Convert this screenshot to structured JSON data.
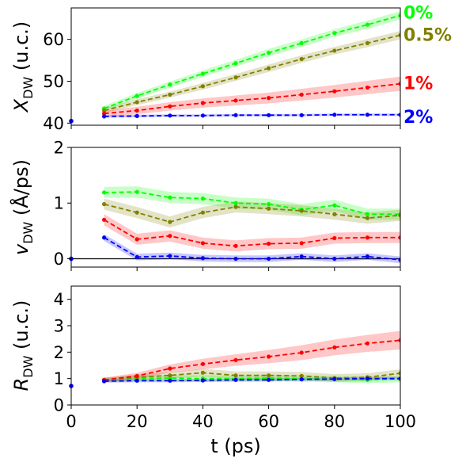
{
  "colors": {
    "0%": "#00ff00",
    "0.5%": "#808000",
    "1%": "#ff0000",
    "2%": "#0000ff"
  },
  "chart_data": [
    {
      "type": "line",
      "ylabel_main": "X",
      "ylabel_sub": "DW",
      "ylabel_unit": " (u.c.)",
      "xlim": [
        0,
        100
      ],
      "ylim": [
        39.5,
        67.5
      ],
      "yticks": [
        40,
        50,
        60
      ],
      "xticks": [
        0,
        20,
        40,
        60,
        80,
        100
      ],
      "show_xticklabels": false,
      "series": [
        {
          "name": "0%",
          "color": "#00ff00",
          "x": [
            10,
            20,
            30,
            40,
            50,
            60,
            70,
            80,
            90,
            100
          ],
          "y": [
            43.5,
            46.5,
            49.2,
            51.8,
            54.3,
            56.8,
            59.1,
            61.5,
            63.5,
            65.7
          ],
          "band": [
            0.6,
            0.7,
            0.7,
            0.8,
            0.8,
            0.9,
            0.9,
            0.9,
            1.0,
            1.0
          ]
        },
        {
          "name": "0.5%",
          "color": "#808000",
          "x": [
            10,
            20,
            30,
            40,
            50,
            60,
            70,
            80,
            90,
            100
          ],
          "y": [
            43.0,
            45.0,
            46.8,
            48.8,
            50.9,
            53.1,
            55.3,
            57.3,
            59.1,
            61.0
          ],
          "band": [
            0.6,
            0.7,
            0.7,
            0.8,
            0.8,
            0.9,
            0.9,
            0.9,
            1.0,
            1.0
          ]
        },
        {
          "name": "1%",
          "color": "#ff0000",
          "x": [
            10,
            20,
            30,
            40,
            50,
            60,
            70,
            80,
            90,
            100
          ],
          "y": [
            42.3,
            43.0,
            44.0,
            44.8,
            45.4,
            46.0,
            46.8,
            47.6,
            48.5,
            49.4
          ],
          "band": [
            0.7,
            0.9,
            1.0,
            1.1,
            1.2,
            1.3,
            1.4,
            1.5,
            1.6,
            1.7
          ]
        },
        {
          "name": "2%",
          "color": "#0000ff",
          "x": [
            10,
            20,
            30,
            40,
            50,
            60,
            70,
            80,
            90,
            100
          ],
          "y": [
            41.6,
            41.7,
            41.8,
            41.8,
            41.9,
            41.9,
            41.9,
            42.0,
            42.0,
            42.0
          ],
          "band": [
            0.3,
            0.3,
            0.3,
            0.3,
            0.3,
            0.3,
            0.3,
            0.3,
            0.3,
            0.3
          ]
        }
      ],
      "initial_point": {
        "x": 0,
        "y": 40.5,
        "color": "#0000ff"
      },
      "annotations": [
        {
          "text": "0%",
          "color": "#00ff00",
          "y": 66.5
        },
        {
          "text": "0.5%",
          "color": "#808000",
          "y": 61.2
        },
        {
          "text": "1%",
          "color": "#ff0000",
          "y": 49.6
        },
        {
          "text": "2%",
          "color": "#0000ff",
          "y": 41.6
        }
      ]
    },
    {
      "type": "line",
      "ylabel_main": "v",
      "ylabel_sub": "DW",
      "ylabel_unit": " (Å/ps)",
      "xlim": [
        0,
        100
      ],
      "ylim": [
        -0.15,
        2.0
      ],
      "yticks": [
        0,
        1,
        2
      ],
      "xticks": [
        0,
        20,
        40,
        60,
        80,
        100
      ],
      "show_xticklabels": false,
      "hline": 0,
      "series": [
        {
          "name": "0%",
          "color": "#00ff00",
          "x": [
            10,
            20,
            30,
            40,
            50,
            60,
            70,
            80,
            90,
            100
          ],
          "y": [
            1.19,
            1.2,
            1.1,
            1.08,
            1.0,
            0.98,
            0.88,
            0.96,
            0.8,
            0.8
          ],
          "band": [
            0.1,
            0.1,
            0.1,
            0.1,
            0.1,
            0.1,
            0.1,
            0.1,
            0.1,
            0.1
          ]
        },
        {
          "name": "0.5%",
          "color": "#808000",
          "x": [
            10,
            20,
            30,
            40,
            50,
            60,
            70,
            80,
            90,
            100
          ],
          "y": [
            0.98,
            0.83,
            0.66,
            0.83,
            0.93,
            0.9,
            0.86,
            0.8,
            0.73,
            0.78
          ],
          "band": [
            0.1,
            0.1,
            0.1,
            0.1,
            0.1,
            0.1,
            0.1,
            0.1,
            0.1,
            0.1
          ]
        },
        {
          "name": "1%",
          "color": "#ff0000",
          "x": [
            10,
            20,
            30,
            40,
            50,
            60,
            70,
            80,
            90,
            100
          ],
          "y": [
            0.7,
            0.35,
            0.41,
            0.28,
            0.23,
            0.27,
            0.28,
            0.37,
            0.38,
            0.38
          ],
          "band": [
            0.1,
            0.1,
            0.1,
            0.1,
            0.1,
            0.1,
            0.1,
            0.1,
            0.1,
            0.1
          ]
        },
        {
          "name": "2%",
          "color": "#0000ff",
          "x": [
            10,
            20,
            30,
            40,
            50,
            60,
            70,
            80,
            90,
            100
          ],
          "y": [
            0.38,
            0.03,
            0.05,
            0.01,
            0.0,
            0.0,
            0.04,
            0.0,
            0.04,
            -0.02
          ],
          "band": [
            0.06,
            0.06,
            0.06,
            0.06,
            0.06,
            0.06,
            0.06,
            0.06,
            0.06,
            0.06
          ]
        }
      ],
      "initial_point": {
        "x": 0,
        "y": 0.0,
        "color": "#0000ff"
      }
    },
    {
      "type": "line",
      "ylabel_main": "R",
      "ylabel_sub": "DW",
      "ylabel_unit": " (u.c.)",
      "xlabel": "t (ps)",
      "xlim": [
        0,
        100
      ],
      "ylim": [
        0,
        4.5
      ],
      "yticks": [
        0,
        1,
        2,
        3,
        4
      ],
      "xticks": [
        0,
        20,
        40,
        60,
        80,
        100
      ],
      "show_xticklabels": true,
      "series": [
        {
          "name": "0%",
          "color": "#00ff00",
          "x": [
            10,
            20,
            30,
            40,
            50,
            60,
            70,
            80,
            90,
            100
          ],
          "y": [
            0.95,
            1.0,
            1.02,
            1.0,
            1.0,
            1.02,
            1.0,
            0.98,
            0.95,
            0.98
          ],
          "band": [
            0.08,
            0.1,
            0.1,
            0.12,
            0.12,
            0.12,
            0.12,
            0.12,
            0.12,
            0.12
          ]
        },
        {
          "name": "0.5%",
          "color": "#808000",
          "x": [
            10,
            20,
            30,
            40,
            50,
            60,
            70,
            80,
            90,
            100
          ],
          "y": [
            0.95,
            1.05,
            1.12,
            1.22,
            1.12,
            1.12,
            1.1,
            1.02,
            1.05,
            1.2
          ],
          "band": [
            0.08,
            0.1,
            0.12,
            0.15,
            0.15,
            0.15,
            0.15,
            0.15,
            0.15,
            0.15
          ]
        },
        {
          "name": "1%",
          "color": "#ff0000",
          "x": [
            10,
            20,
            30,
            40,
            50,
            60,
            70,
            80,
            90,
            100
          ],
          "y": [
            0.95,
            1.1,
            1.38,
            1.55,
            1.7,
            1.83,
            1.98,
            2.18,
            2.33,
            2.45
          ],
          "band": [
            0.08,
            0.12,
            0.15,
            0.2,
            0.22,
            0.25,
            0.28,
            0.3,
            0.32,
            0.35
          ]
        },
        {
          "name": "2%",
          "color": "#0000ff",
          "x": [
            10,
            20,
            30,
            40,
            50,
            60,
            70,
            80,
            90,
            100
          ],
          "y": [
            0.9,
            0.92,
            0.92,
            0.93,
            0.95,
            0.95,
            0.97,
            0.98,
            1.0,
            1.0
          ],
          "band": [
            0.06,
            0.06,
            0.06,
            0.06,
            0.06,
            0.06,
            0.06,
            0.06,
            0.06,
            0.06
          ]
        }
      ],
      "initial_point": {
        "x": 0,
        "y": 0.72,
        "color": "#0000ff"
      }
    }
  ]
}
